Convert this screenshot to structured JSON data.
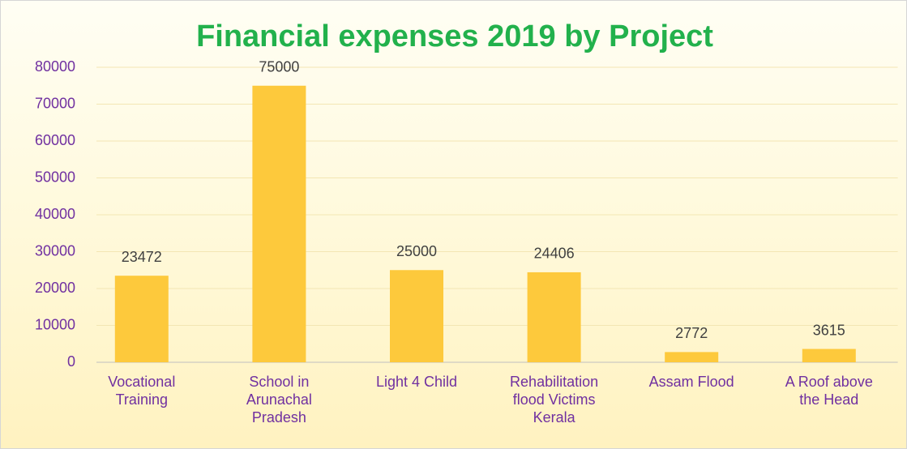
{
  "chart_data": {
    "type": "bar",
    "title": "Financial expenses 2019 by Project",
    "categories": [
      "Vocational Training",
      "School in Arunachal Pradesh",
      "Light 4 Child",
      "Rehabilitation flood Victims Kerala",
      "Assam Flood",
      "A Roof above the Head"
    ],
    "values": [
      23472,
      75000,
      25000,
      24406,
      2772,
      3615
    ],
    "color": "#fdc93c",
    "ylim": [
      0,
      80000
    ],
    "yticks": [
      0,
      10000,
      20000,
      30000,
      40000,
      50000,
      60000,
      70000,
      80000
    ],
    "grid": true,
    "data_labels": true
  }
}
